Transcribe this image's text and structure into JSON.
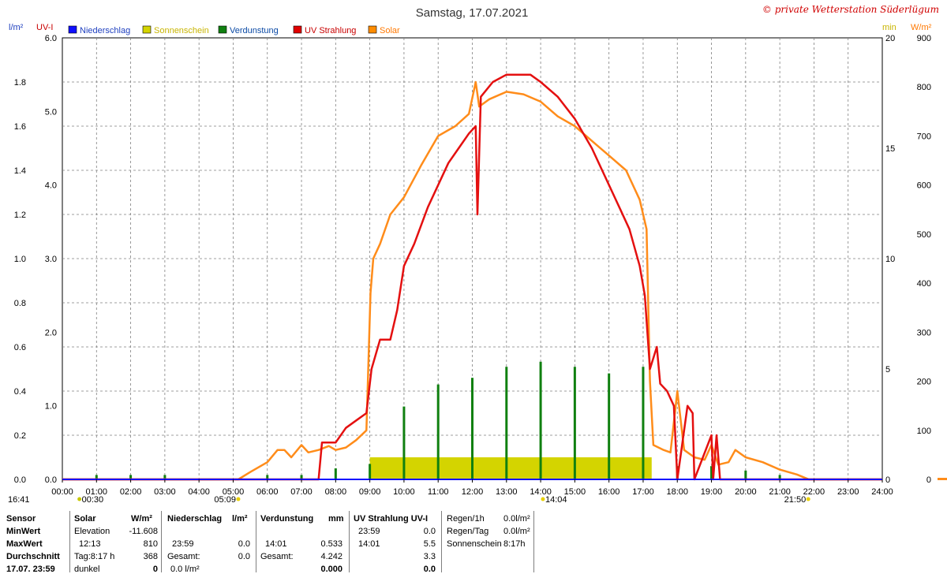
{
  "title": "Samstag, 17.07.2021",
  "copyright": "© private Wetterstation Süderlügum",
  "axis_labels": {
    "left1": "l/m²",
    "left2": "UV-I",
    "right1": "min",
    "right2": "W/m²"
  },
  "legend": [
    {
      "label": "Niederschlag",
      "swatch": "#1010ff",
      "text_color": "#1e3fbf"
    },
    {
      "label": "Sonnenschein",
      "swatch": "#d4d400",
      "text_color": "#c8b400"
    },
    {
      "label": "Verdunstung",
      "swatch": "#108010",
      "text_color": "#0b4aa5"
    },
    {
      "label": "UV Strahlung",
      "swatch": "#e00000",
      "text_color": "#c80000"
    },
    {
      "label": "Solar",
      "swatch": "#ff8c00",
      "text_color": "#ff7800"
    }
  ],
  "colors": {
    "rain": "#1010ff",
    "sun": "#d4d400",
    "evap": "#108010",
    "uv": "#e41010",
    "solar": "#ff8c1a",
    "grid": "#808080"
  },
  "markers": {
    "time_now": "16:41",
    "moonset": "00:30",
    "sunrise": "05:09",
    "solar_noon": "14:04",
    "sunset": "21:50"
  },
  "chart_data": {
    "type": "line",
    "title": "Samstag, 17.07.2021",
    "x_ticks": [
      "00:00",
      "01:00",
      "02:00",
      "03:00",
      "04:00",
      "05:00",
      "06:00",
      "07:00",
      "08:00",
      "09:00",
      "10:00",
      "11:00",
      "12:00",
      "13:00",
      "14:00",
      "15:00",
      "16:00",
      "17:00",
      "18:00",
      "19:00",
      "20:00",
      "21:00",
      "22:00",
      "23:00",
      "24:00"
    ],
    "xlim_hours": [
      0,
      24
    ],
    "axes": {
      "rain_lm2": {
        "range": [
          0,
          2.0
        ],
        "ticks": [
          "0.0",
          "0.2",
          "0.4",
          "0.6",
          "0.8",
          "1.0",
          "1.2",
          "1.4",
          "1.6",
          "1.8"
        ]
      },
      "uv_index": {
        "range": [
          0,
          6.0
        ],
        "ticks": [
          "0.0",
          "1.0",
          "2.0",
          "3.0",
          "4.0",
          "5.0",
          "6.0"
        ]
      },
      "sun_min": {
        "range": [
          0,
          20
        ],
        "ticks": [
          "0",
          "5",
          "10",
          "15",
          "20"
        ]
      },
      "solar_wm2": {
        "range": [
          0,
          900
        ],
        "ticks": [
          "0",
          "100",
          "200",
          "300",
          "400",
          "500",
          "600",
          "700",
          "800",
          "900"
        ]
      }
    },
    "series": [
      {
        "name": "Solar",
        "unit": "W/m²",
        "points": [
          [
            0,
            0
          ],
          [
            5.15,
            0
          ],
          [
            5.5,
            15
          ],
          [
            6,
            35
          ],
          [
            6.3,
            60
          ],
          [
            6.5,
            60
          ],
          [
            6.7,
            45
          ],
          [
            7.0,
            70
          ],
          [
            7.2,
            55
          ],
          [
            7.5,
            60
          ],
          [
            7.8,
            68
          ],
          [
            8.0,
            60
          ],
          [
            8.3,
            65
          ],
          [
            8.6,
            80
          ],
          [
            8.9,
            100
          ],
          [
            9.02,
            380
          ],
          [
            9.1,
            450
          ],
          [
            9.3,
            480
          ],
          [
            9.6,
            540
          ],
          [
            10.0,
            575
          ],
          [
            10.5,
            640
          ],
          [
            11.0,
            700
          ],
          [
            11.5,
            720
          ],
          [
            11.9,
            745
          ],
          [
            12.1,
            810
          ],
          [
            12.2,
            760
          ],
          [
            12.5,
            775
          ],
          [
            13.0,
            790
          ],
          [
            13.5,
            785
          ],
          [
            14.0,
            770
          ],
          [
            14.5,
            740
          ],
          [
            15.0,
            720
          ],
          [
            15.5,
            690
          ],
          [
            16.0,
            660
          ],
          [
            16.5,
            630
          ],
          [
            16.9,
            570
          ],
          [
            17.1,
            510
          ],
          [
            17.2,
            200
          ],
          [
            17.3,
            70
          ],
          [
            17.6,
            60
          ],
          [
            17.8,
            55
          ],
          [
            18.0,
            180
          ],
          [
            18.2,
            60
          ],
          [
            18.5,
            45
          ],
          [
            18.8,
            40
          ],
          [
            19.0,
            70
          ],
          [
            19.2,
            30
          ],
          [
            19.5,
            35
          ],
          [
            19.7,
            60
          ],
          [
            20.0,
            45
          ],
          [
            20.5,
            35
          ],
          [
            21.0,
            20
          ],
          [
            21.5,
            10
          ],
          [
            21.85,
            0
          ],
          [
            24,
            0
          ]
        ]
      },
      {
        "name": "UV Strahlung",
        "unit": "UV-I",
        "points": [
          [
            0,
            0
          ],
          [
            7.5,
            0
          ],
          [
            7.6,
            0.5
          ],
          [
            8.0,
            0.5
          ],
          [
            8.3,
            0.7
          ],
          [
            8.6,
            0.8
          ],
          [
            8.9,
            0.9
          ],
          [
            9.05,
            1.5
          ],
          [
            9.3,
            1.9
          ],
          [
            9.6,
            1.9
          ],
          [
            9.8,
            2.3
          ],
          [
            10.0,
            2.9
          ],
          [
            10.3,
            3.2
          ],
          [
            10.7,
            3.7
          ],
          [
            11.0,
            4.0
          ],
          [
            11.3,
            4.3
          ],
          [
            11.6,
            4.5
          ],
          [
            11.9,
            4.7
          ],
          [
            12.1,
            4.8
          ],
          [
            12.15,
            3.6
          ],
          [
            12.25,
            5.2
          ],
          [
            12.6,
            5.4
          ],
          [
            13.0,
            5.5
          ],
          [
            13.3,
            5.5
          ],
          [
            13.7,
            5.5
          ],
          [
            14.0,
            5.4
          ],
          [
            14.5,
            5.2
          ],
          [
            15.0,
            4.9
          ],
          [
            15.5,
            4.5
          ],
          [
            16.0,
            4.0
          ],
          [
            16.3,
            3.7
          ],
          [
            16.6,
            3.4
          ],
          [
            16.9,
            2.9
          ],
          [
            17.05,
            2.5
          ],
          [
            17.2,
            1.5
          ],
          [
            17.4,
            1.8
          ],
          [
            17.5,
            1.3
          ],
          [
            17.7,
            1.2
          ],
          [
            17.9,
            1.0
          ],
          [
            18.0,
            0
          ],
          [
            18.3,
            1.0
          ],
          [
            18.45,
            0.9
          ],
          [
            18.5,
            0
          ],
          [
            19.0,
            0.6
          ],
          [
            19.05,
            0
          ],
          [
            19.15,
            0.6
          ],
          [
            19.25,
            0
          ],
          [
            24,
            0
          ]
        ]
      },
      {
        "name": "Verdunstung",
        "unit": "l/m²",
        "bars": [
          [
            1.0,
            0.02
          ],
          [
            2.0,
            0.02
          ],
          [
            3.0,
            0.02
          ],
          [
            6.0,
            0.02
          ],
          [
            7.0,
            0.02
          ],
          [
            8.0,
            0.05
          ],
          [
            9.0,
            0.07
          ],
          [
            10.0,
            0.33
          ],
          [
            11.0,
            0.43
          ],
          [
            12.0,
            0.46
          ],
          [
            13.0,
            0.51
          ],
          [
            14.0,
            0.533
          ],
          [
            15.0,
            0.51
          ],
          [
            16.0,
            0.48
          ],
          [
            17.0,
            0.51
          ],
          [
            18.0,
            0.06
          ],
          [
            19.0,
            0.06
          ],
          [
            20.0,
            0.04
          ],
          [
            21.0,
            0.02
          ]
        ]
      },
      {
        "name": "Sonnenschein",
        "unit": "min",
        "bars": [
          [
            9.0,
            17.25,
            1.0
          ]
        ]
      },
      {
        "name": "Niederschlag",
        "unit": "l/m²",
        "points": []
      }
    ]
  },
  "stats": {
    "solar": {
      "heading": "Solar",
      "unit": "W/m²",
      "rows": [
        {
          "label": "Elevation",
          "value": "-11.608"
        },
        {
          "label": "12:13",
          "value": "810"
        },
        {
          "label": "Tag:8:17 h",
          "value": "368"
        },
        {
          "label": "dunkel",
          "value": "0"
        }
      ]
    },
    "row_labels": [
      "Sensor",
      "MinWert",
      "MaxWert",
      "Durchschnitt",
      "17.07. 23:59"
    ],
    "rain": {
      "heading": "Niederschlag",
      "unit": "l/m²",
      "rows": [
        {
          "label": "",
          "value": ""
        },
        {
          "label": "23:59",
          "value": "0.0"
        },
        {
          "label": "Gesamt:",
          "value": "0.0"
        },
        {
          "label": "",
          "value": "0.0 l/m²"
        }
      ]
    },
    "evap": {
      "heading": "Verdunstung",
      "unit": "mm",
      "rows": [
        {
          "label": "",
          "value": ""
        },
        {
          "label": "14:01",
          "value": "0.533"
        },
        {
          "label": "Gesamt:",
          "value": "4.242"
        },
        {
          "label": "",
          "value": "0.000"
        }
      ]
    },
    "uv": {
      "heading": "UV Strahlung UV-I",
      "rows": [
        {
          "label": "23:59",
          "value": "0.0"
        },
        {
          "label": "14:01",
          "value": "5.5"
        },
        {
          "label": "",
          "value": "3.3"
        },
        {
          "label": "",
          "value": "0.0"
        }
      ]
    },
    "totals": {
      "rows": [
        {
          "label": "Regen/1h",
          "value": "0.0l/m²"
        },
        {
          "label": "Regen/Tag",
          "value": "0.0l/m²"
        },
        {
          "label": "Sonnenschein",
          "value": "8:17h"
        }
      ]
    }
  }
}
